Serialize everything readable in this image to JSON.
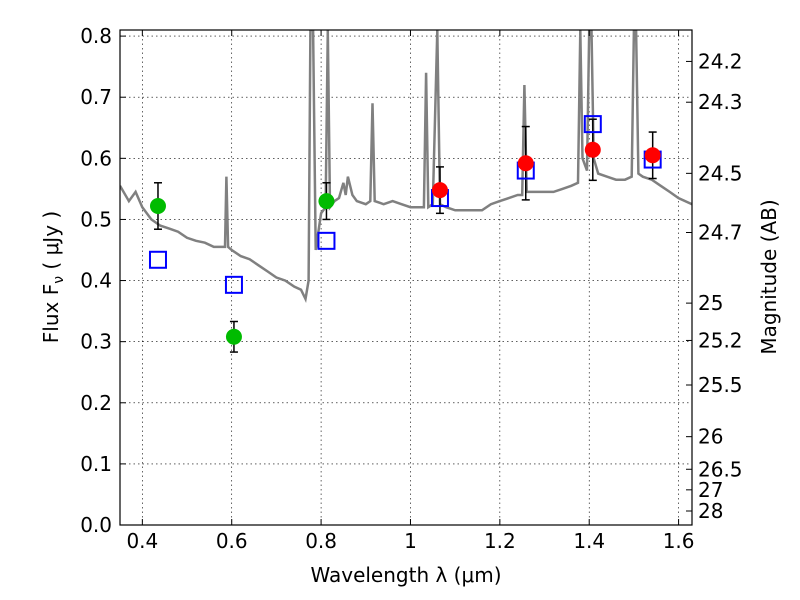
{
  "chart_data": {
    "type": "scatter",
    "xlabel": "Wavelength  λ (μm)",
    "ylabel": "Flux  F",
    "ylabel_sub": "ν",
    "ylabel_unit": " ( μJy )",
    "y2label": "Magnitude (AB)",
    "xlim": [
      0.35,
      1.63
    ],
    "ylim": [
      0.0,
      0.81
    ],
    "grid": true,
    "x_ticks": [
      {
        "value": 0.4,
        "label": "0.4"
      },
      {
        "value": 0.6,
        "label": "0.6"
      },
      {
        "value": 0.8,
        "label": "0.8"
      },
      {
        "value": 1.0,
        "label": "1"
      },
      {
        "value": 1.2,
        "label": "1.2"
      },
      {
        "value": 1.4,
        "label": "1.4"
      },
      {
        "value": 1.6,
        "label": "1.6"
      }
    ],
    "y_ticks": [
      {
        "value": 0.0,
        "label": "0.0"
      },
      {
        "value": 0.1,
        "label": "0.1"
      },
      {
        "value": 0.2,
        "label": "0.2"
      },
      {
        "value": 0.3,
        "label": "0.3"
      },
      {
        "value": 0.4,
        "label": "0.4"
      },
      {
        "value": 0.5,
        "label": "0.5"
      },
      {
        "value": 0.6,
        "label": "0.6"
      },
      {
        "value": 0.7,
        "label": "0.7"
      },
      {
        "value": 0.8,
        "label": "0.8"
      }
    ],
    "y2_ticks": [
      "24.2",
      "24.3",
      "24.5",
      "24.7",
      "25",
      "25.2",
      "25.5",
      "26",
      "26.5",
      "27",
      "28"
    ],
    "series": [
      {
        "kind": "spectrum",
        "color": "#808080",
        "points": [
          [
            0.35,
            0.555
          ],
          [
            0.37,
            0.53
          ],
          [
            0.385,
            0.545
          ],
          [
            0.4,
            0.52
          ],
          [
            0.42,
            0.5
          ],
          [
            0.44,
            0.49
          ],
          [
            0.46,
            0.485
          ],
          [
            0.48,
            0.48
          ],
          [
            0.5,
            0.47
          ],
          [
            0.52,
            0.465
          ],
          [
            0.54,
            0.462
          ],
          [
            0.56,
            0.455
          ],
          [
            0.58,
            0.455
          ],
          [
            0.585,
            0.455
          ],
          [
            0.588,
            0.57
          ],
          [
            0.592,
            0.455
          ],
          [
            0.6,
            0.45
          ],
          [
            0.62,
            0.44
          ],
          [
            0.64,
            0.435
          ],
          [
            0.66,
            0.425
          ],
          [
            0.68,
            0.415
          ],
          [
            0.7,
            0.405
          ],
          [
            0.72,
            0.4
          ],
          [
            0.74,
            0.39
          ],
          [
            0.755,
            0.385
          ],
          [
            0.765,
            0.37
          ],
          [
            0.772,
            0.4
          ],
          [
            0.776,
            0.81
          ],
          [
            0.782,
            0.81
          ],
          [
            0.788,
            0.45
          ],
          [
            0.8,
            0.51
          ],
          [
            0.81,
            0.52
          ],
          [
            0.815,
            0.81
          ],
          [
            0.82,
            0.52
          ],
          [
            0.83,
            0.53
          ],
          [
            0.84,
            0.535
          ],
          [
            0.85,
            0.56
          ],
          [
            0.855,
            0.54
          ],
          [
            0.86,
            0.57
          ],
          [
            0.87,
            0.54
          ],
          [
            0.88,
            0.53
          ],
          [
            0.9,
            0.525
          ],
          [
            0.91,
            0.53
          ],
          [
            0.915,
            0.69
          ],
          [
            0.92,
            0.53
          ],
          [
            0.94,
            0.525
          ],
          [
            0.96,
            0.53
          ],
          [
            0.98,
            0.525
          ],
          [
            1.0,
            0.52
          ],
          [
            1.02,
            0.52
          ],
          [
            1.03,
            0.52
          ],
          [
            1.035,
            0.74
          ],
          [
            1.04,
            0.52
          ],
          [
            1.05,
            0.525
          ],
          [
            1.06,
            0.81
          ],
          [
            1.066,
            0.525
          ],
          [
            1.08,
            0.52
          ],
          [
            1.1,
            0.515
          ],
          [
            1.12,
            0.515
          ],
          [
            1.14,
            0.515
          ],
          [
            1.16,
            0.515
          ],
          [
            1.18,
            0.525
          ],
          [
            1.2,
            0.53
          ],
          [
            1.22,
            0.535
          ],
          [
            1.24,
            0.54
          ],
          [
            1.25,
            0.54
          ],
          [
            1.255,
            0.72
          ],
          [
            1.26,
            0.545
          ],
          [
            1.28,
            0.545
          ],
          [
            1.3,
            0.545
          ],
          [
            1.32,
            0.545
          ],
          [
            1.34,
            0.55
          ],
          [
            1.36,
            0.555
          ],
          [
            1.375,
            0.56
          ],
          [
            1.38,
            0.81
          ],
          [
            1.385,
            0.6
          ],
          [
            1.395,
            0.58
          ],
          [
            1.4,
            0.81
          ],
          [
            1.405,
            0.81
          ],
          [
            1.41,
            0.6
          ],
          [
            1.42,
            0.575
          ],
          [
            1.44,
            0.57
          ],
          [
            1.46,
            0.565
          ],
          [
            1.48,
            0.565
          ],
          [
            1.495,
            0.57
          ],
          [
            1.5,
            0.81
          ],
          [
            1.505,
            0.81
          ],
          [
            1.51,
            0.575
          ],
          [
            1.52,
            0.57
          ],
          [
            1.54,
            0.565
          ],
          [
            1.56,
            0.555
          ],
          [
            1.58,
            0.545
          ],
          [
            1.6,
            0.535
          ],
          [
            1.63,
            0.525
          ]
        ]
      },
      {
        "kind": "model_squares",
        "color": "#0000ff",
        "x": [
          0.435,
          0.605,
          0.812,
          1.066,
          1.258,
          1.408,
          1.542
        ],
        "y": [
          0.434,
          0.393,
          0.465,
          0.535,
          0.58,
          0.656,
          0.598
        ]
      },
      {
        "kind": "points",
        "color": "#00bb00",
        "x": [
          0.435,
          0.605,
          0.812
        ],
        "y": [
          0.522,
          0.308,
          0.53
        ],
        "err": [
          0.038,
          0.025,
          0.03
        ]
      },
      {
        "kind": "points",
        "color": "#ff0000",
        "x": [
          1.066,
          1.258,
          1.408,
          1.542
        ],
        "y": [
          0.548,
          0.592,
          0.614,
          0.605
        ],
        "err": [
          0.038,
          0.06,
          0.05,
          0.038
        ]
      }
    ]
  }
}
